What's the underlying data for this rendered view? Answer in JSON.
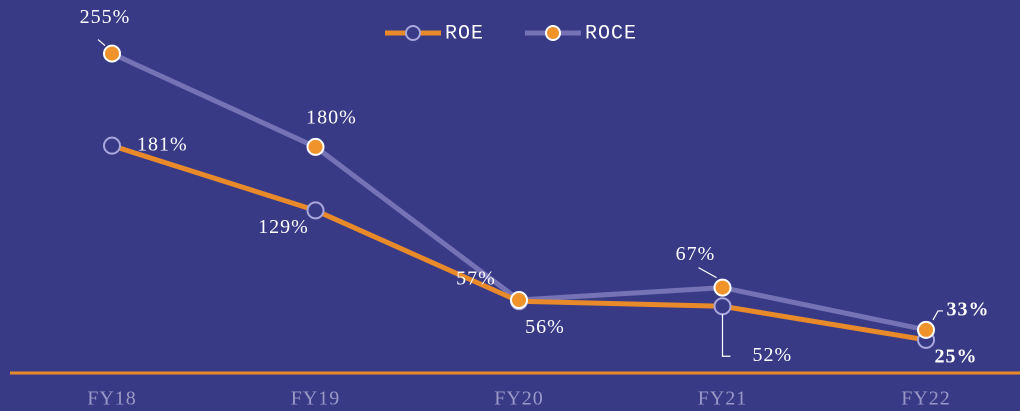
{
  "chart_data": {
    "type": "line",
    "categories": [
      "FY18",
      "FY19",
      "FY20",
      "FY21",
      "FY22"
    ],
    "series": [
      {
        "name": "ROE",
        "color": "#e8892a",
        "marker_fill": "#383a86",
        "marker_stroke": "#a9a7dc",
        "values": [
          181,
          129,
          56,
          52,
          25
        ],
        "value_labels": [
          "181%",
          "129%",
          "56%",
          "52%",
          "25%"
        ]
      },
      {
        "name": "ROCE",
        "color": "#7573b6",
        "marker_fill": "#f0932b",
        "marker_stroke": "#ffffff",
        "values": [
          255,
          180,
          57,
          67,
          33
        ],
        "value_labels": [
          "255%",
          "180%",
          "57%",
          "67%",
          "33%"
        ]
      }
    ],
    "ylim": [
      0,
      290
    ],
    "legend": "top"
  }
}
